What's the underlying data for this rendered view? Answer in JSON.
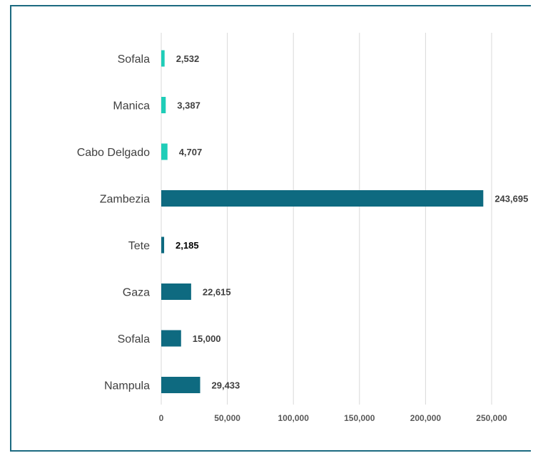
{
  "chart_data": {
    "type": "bar",
    "orientation": "horizontal",
    "title": "",
    "xlabel": "",
    "ylabel": "",
    "categories": [
      "Sofala",
      "Manica",
      "Cabo Delgado",
      "Zambezia",
      "Tete",
      "Gaza",
      "Sofala",
      "Nampula"
    ],
    "values": [
      2532,
      3387,
      4707,
      243695,
      2185,
      22615,
      15000,
      29433
    ],
    "value_labels": [
      "2,532",
      "3,387",
      "4,707",
      "243,695",
      "2,185",
      "22,615",
      "15,000",
      "29,433"
    ],
    "bar_colors": [
      "#1fcdb8",
      "#1fcdb8",
      "#1fcdb8",
      "#0e6a80",
      "#0e6a80",
      "#0e6a80",
      "#0e6a80",
      "#0e6a80"
    ],
    "xlim": [
      0,
      250000
    ],
    "xticks": [
      0,
      50000,
      100000,
      150000,
      200000,
      250000
    ],
    "xtick_labels": [
      "0",
      "50,000",
      "100,000",
      "150,000",
      "200,000",
      "250,000"
    ],
    "grid": true,
    "legend": "none"
  },
  "colors": {
    "frame": "#1b6a80",
    "grid": "#d9d9d9"
  }
}
